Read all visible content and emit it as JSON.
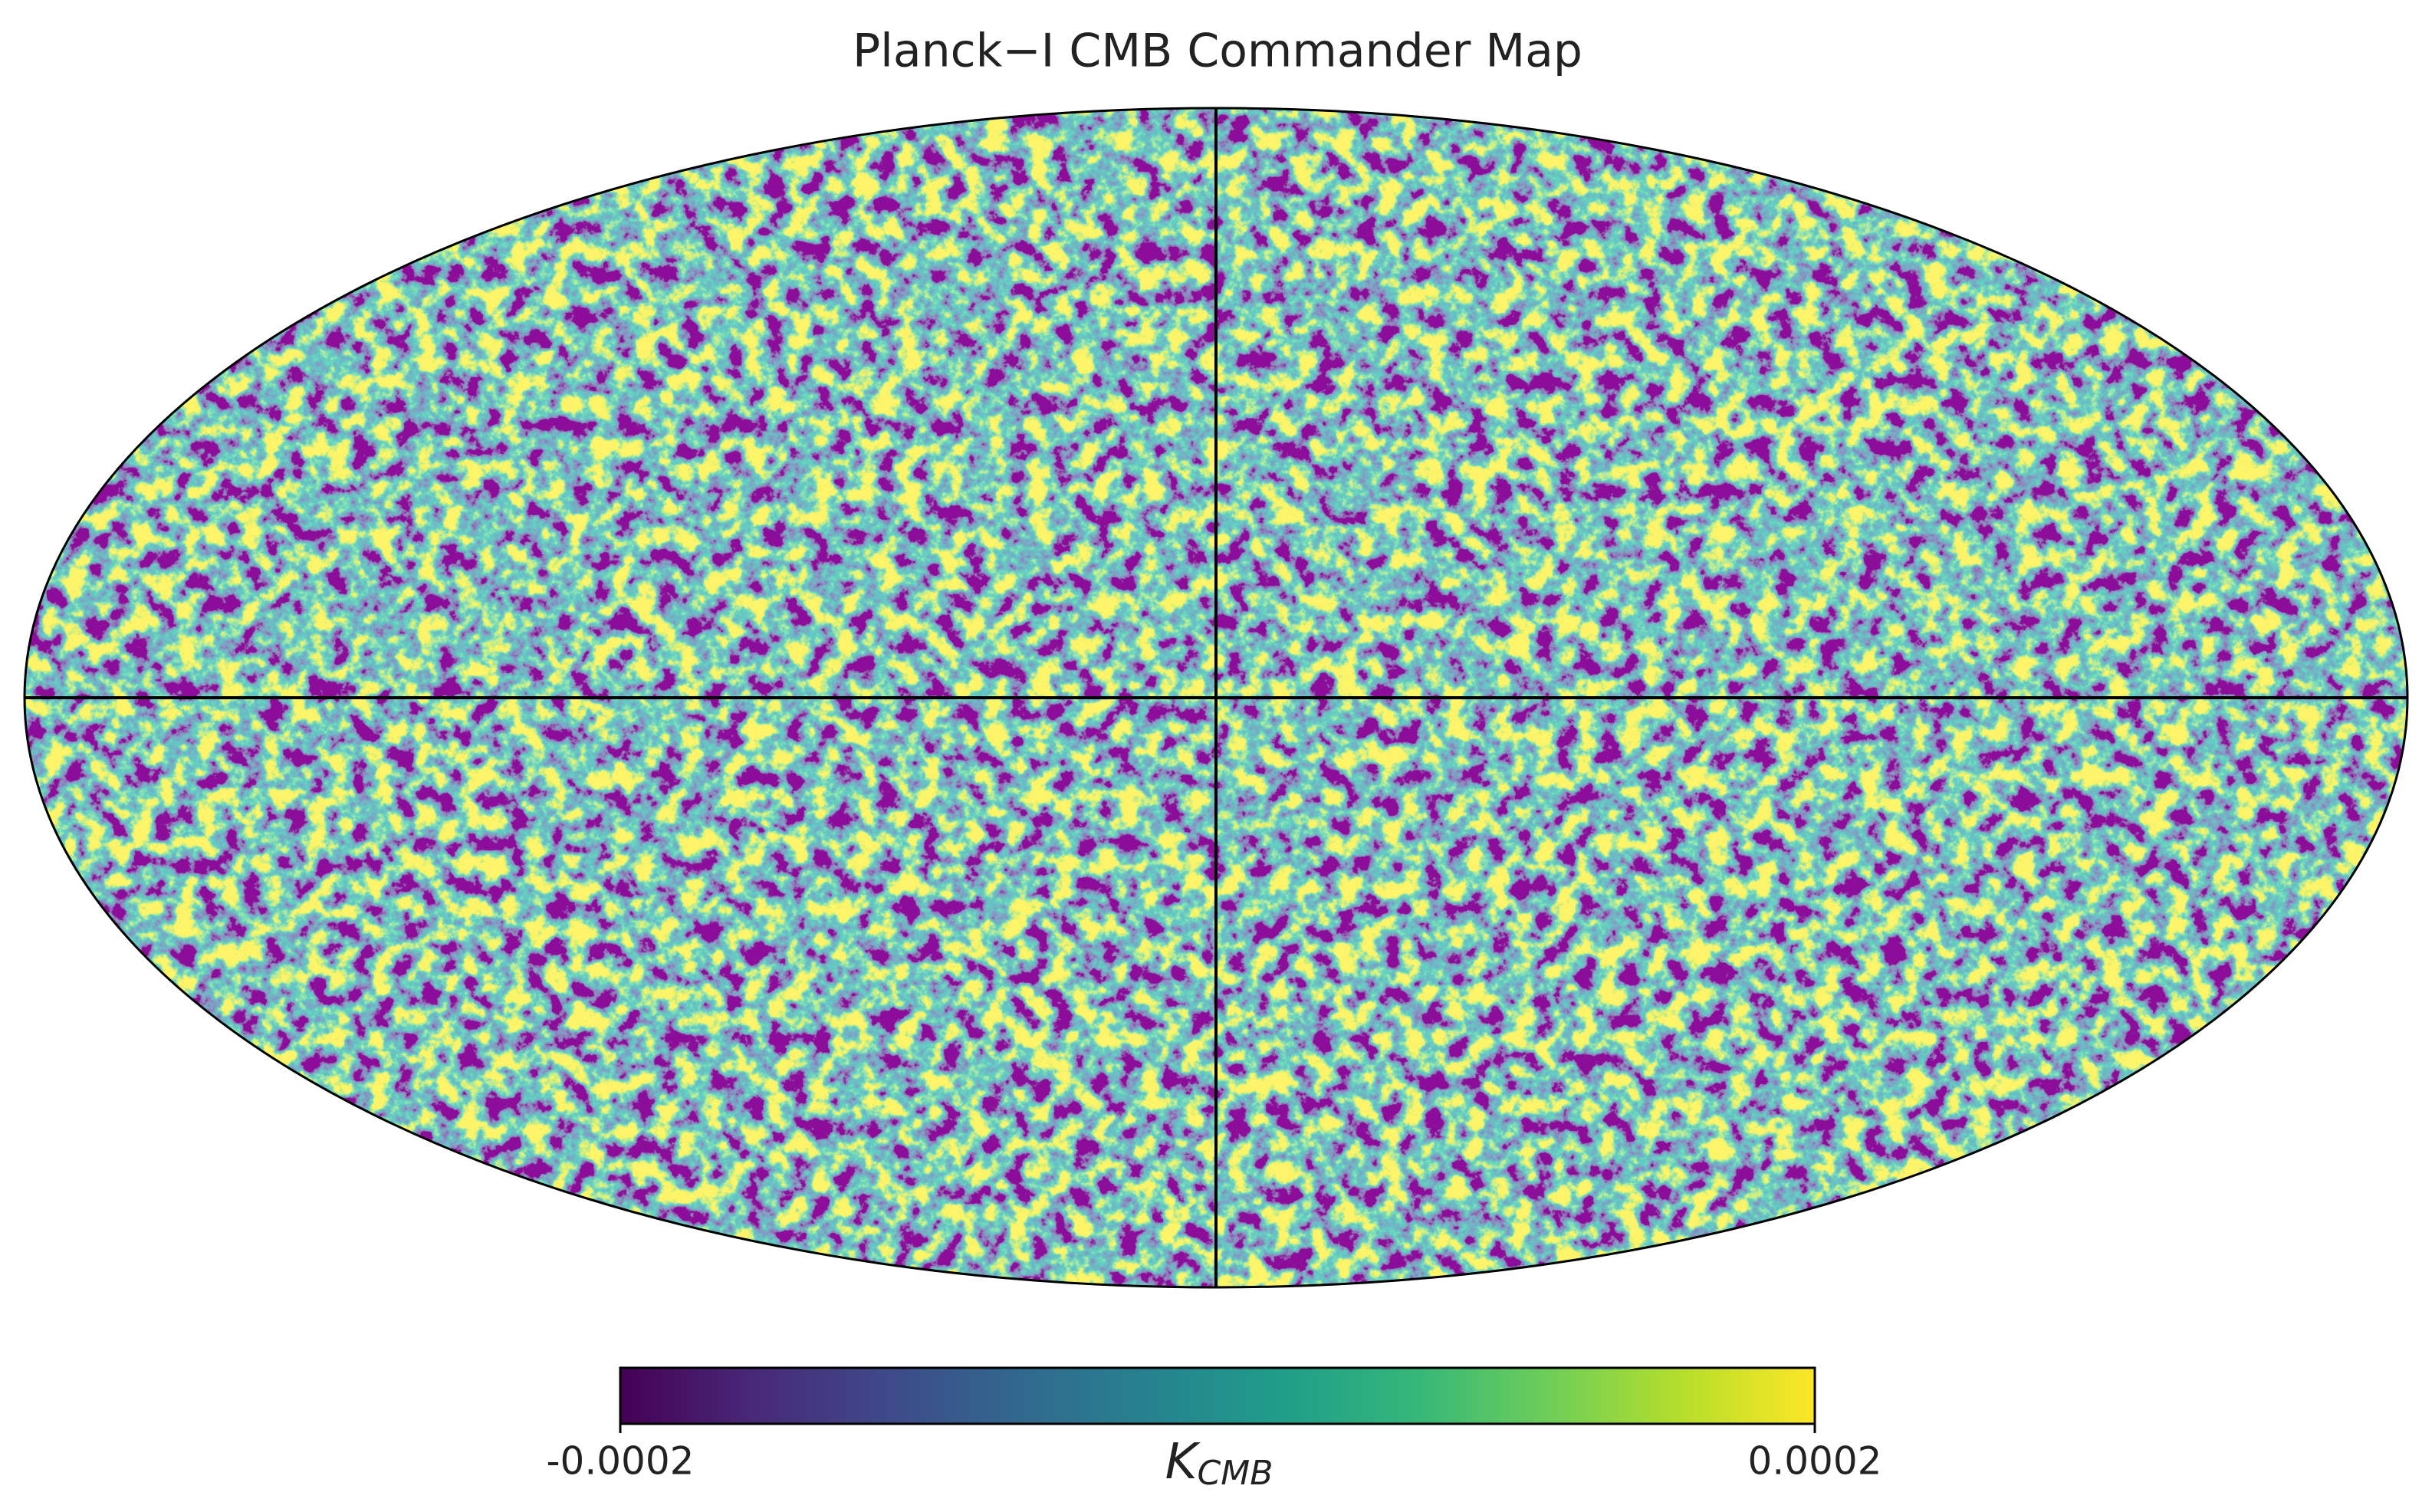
{
  "chart_data": {
    "type": "map",
    "title": "Planck−I CMB Commander Map",
    "projection": "mollweide",
    "colormap": "viridis",
    "colorbar": {
      "lim": [
        -0.0002,
        0.0002
      ],
      "ticks": [
        -0.0002,
        0.0002
      ],
      "label": {
        "main": "K",
        "sub": "CMB"
      }
    }
  }
}
